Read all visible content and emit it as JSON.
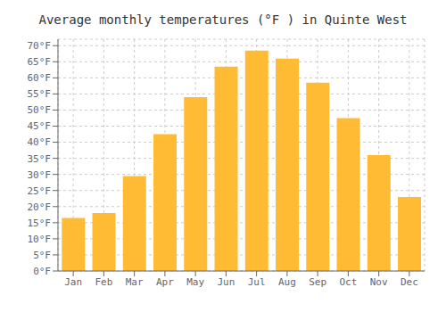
{
  "chart_data": {
    "type": "bar",
    "title": "Average monthly temperatures (°F ) in Quinte West",
    "categories": [
      "Jan",
      "Feb",
      "Mar",
      "Apr",
      "May",
      "Jun",
      "Jul",
      "Aug",
      "Sep",
      "Oct",
      "Nov",
      "Dec"
    ],
    "values": [
      16.5,
      18.0,
      29.5,
      42.5,
      54.0,
      63.5,
      68.5,
      66.0,
      58.5,
      47.5,
      36.0,
      23.0
    ],
    "color": "#FFBB33",
    "ylim": [
      0,
      72
    ],
    "yticks": [
      {
        "value": 0,
        "label": "0°F"
      },
      {
        "value": 5,
        "label": "5°F"
      },
      {
        "value": 10,
        "label": "10°F"
      },
      {
        "value": 15,
        "label": "15°F"
      },
      {
        "value": 20,
        "label": "20°F"
      },
      {
        "value": 25,
        "label": "25°F"
      },
      {
        "value": 30,
        "label": "30°F"
      },
      {
        "value": 35,
        "label": "35°F"
      },
      {
        "value": 40,
        "label": "40°F"
      },
      {
        "value": 45,
        "label": "45°F"
      },
      {
        "value": 50,
        "label": "50°F"
      },
      {
        "value": 55,
        "label": "55°F"
      },
      {
        "value": 60,
        "label": "60°F"
      },
      {
        "value": 65,
        "label": "65°F"
      },
      {
        "value": 70,
        "label": "70°F"
      }
    ],
    "grid": true
  }
}
